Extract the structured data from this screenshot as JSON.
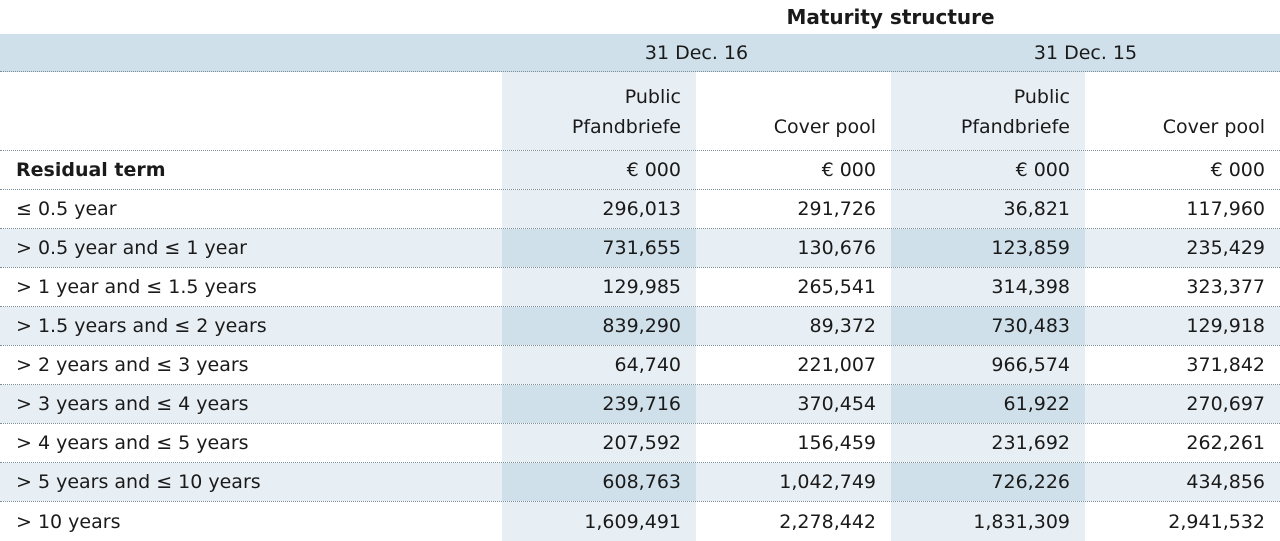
{
  "title": "Maturity structure",
  "dates": [
    "31 Dec. 16",
    "31 Dec. 15"
  ],
  "col_headers": {
    "public_line1": "Public",
    "public_line2": "Pfandbriefe",
    "cover_pool": "Cover pool"
  },
  "units_row": {
    "label": "Residual term",
    "units": [
      "€ 000",
      "€ 000",
      "€ 000",
      "€ 000"
    ]
  },
  "rows": [
    {
      "label": "≤ 0.5 year",
      "values": [
        "296,013",
        "291,726",
        "36,821",
        "117,960"
      ]
    },
    {
      "label": "> 0.5 year and ≤ 1 year",
      "values": [
        "731,655",
        "130,676",
        "123,859",
        "235,429"
      ]
    },
    {
      "label": "> 1 year and ≤ 1.5 years",
      "values": [
        "129,985",
        "265,541",
        "314,398",
        "323,377"
      ]
    },
    {
      "label": "> 1.5 years and ≤ 2 years",
      "values": [
        "839,290",
        "89,372",
        "730,483",
        "129,918"
      ]
    },
    {
      "label": "> 2 years and ≤ 3 years",
      "values": [
        "64,740",
        "221,007",
        "966,574",
        "371,842"
      ]
    },
    {
      "label": "> 3 years and ≤ 4 years",
      "values": [
        "239,716",
        "370,454",
        "61,922",
        "270,697"
      ]
    },
    {
      "label": "> 4 years and ≤ 5 years",
      "values": [
        "207,592",
        "156,459",
        "231,692",
        "262,261"
      ]
    },
    {
      "label": "> 5 years and ≤ 10 years",
      "values": [
        "608,763",
        "1,042,749",
        "726,226",
        "434,856"
      ]
    },
    {
      "label": "> 10 years",
      "values": [
        "1,609,491",
        "2,278,442",
        "1,831,309",
        "2,941,532"
      ]
    }
  ],
  "colors": {
    "band": "#cfe0ea",
    "shade": "#e8eff4"
  }
}
